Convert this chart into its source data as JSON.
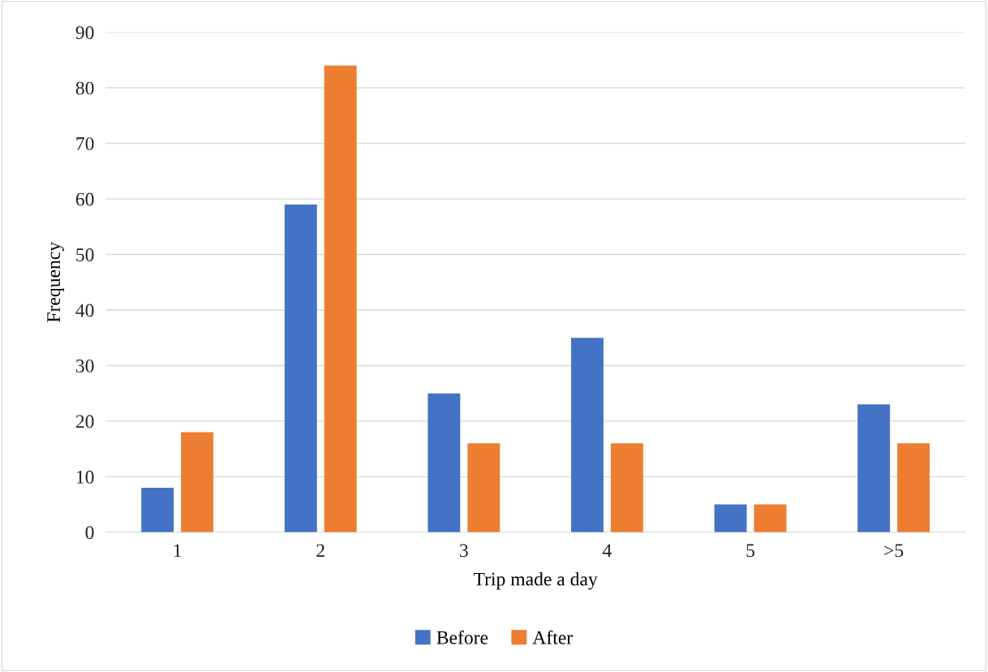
{
  "chart_data": {
    "type": "bar",
    "xlabel": "Trip made a day",
    "ylabel": "Frequency",
    "categories": [
      "1",
      "2",
      "3",
      "4",
      "5",
      ">5"
    ],
    "series": [
      {
        "name": "Before",
        "color": "#4472c4",
        "values": [
          8,
          59,
          25,
          35,
          5,
          23
        ]
      },
      {
        "name": "After",
        "color": "#ed7d31",
        "values": [
          18,
          84,
          16,
          16,
          5,
          16
        ]
      }
    ],
    "ylim": [
      0,
      90
    ],
    "yticks": [
      0,
      10,
      20,
      30,
      40,
      50,
      60,
      70,
      80,
      90
    ],
    "grid": "y",
    "legend": "bottom"
  }
}
